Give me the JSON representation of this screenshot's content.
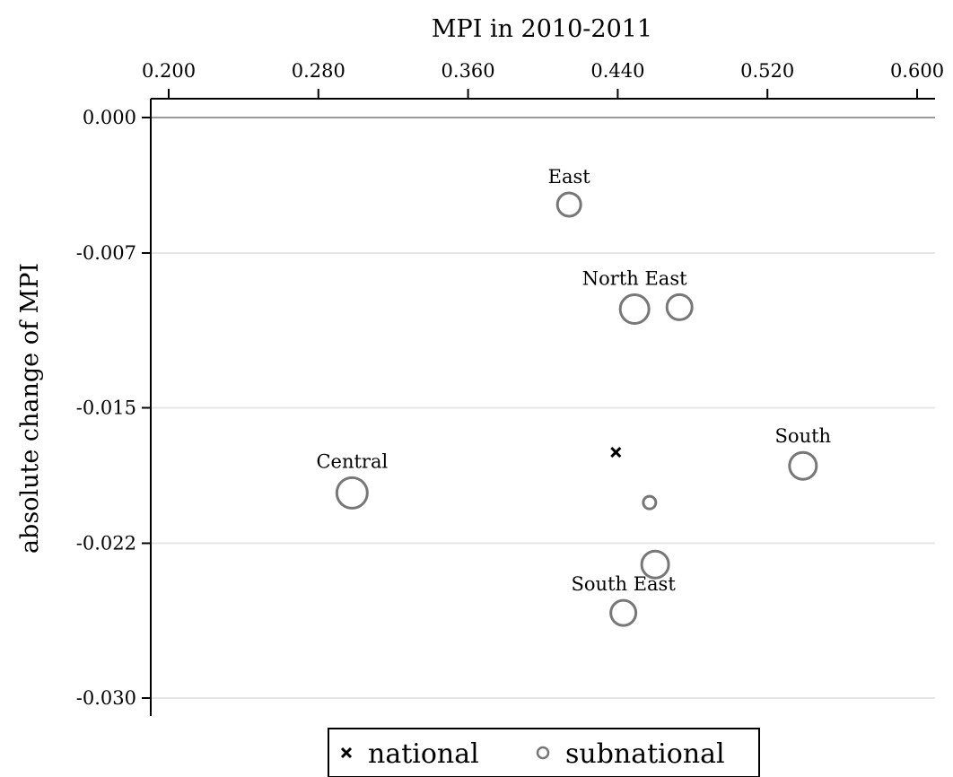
{
  "chart_data": {
    "type": "scatter",
    "xlabel": "MPI in 2010-2011",
    "ylabel": "absolute change of MPI",
    "x_axis_position": "top",
    "xlim": [
      0.2,
      0.6
    ],
    "ylim": [
      -0.03,
      0.0
    ],
    "x_ticks": [
      "0.200",
      "0.280",
      "0.360",
      "0.440",
      "0.520",
      "0.600"
    ],
    "y_ticks": [
      "0.000",
      "-0.007",
      "-0.015",
      "-0.022",
      "-0.030"
    ],
    "grid": "horizontal",
    "reference_line_y": 0.0,
    "legend": {
      "placement": "bottom-center",
      "items": [
        {
          "symbol": "×",
          "label": "national"
        },
        {
          "symbol": "○",
          "label": "subnational"
        }
      ]
    },
    "series": [
      {
        "name": "national",
        "marker": "x",
        "points": [
          {
            "x": 0.439,
            "y": -0.0173
          }
        ]
      },
      {
        "name": "subnational",
        "marker": "circle",
        "points": [
          {
            "x": 0.414,
            "y": -0.0045,
            "label": "East",
            "size": 13
          },
          {
            "x": 0.449,
            "y": -0.0099,
            "label": "North East",
            "size": 16
          },
          {
            "x": 0.473,
            "y": -0.0098,
            "label": "",
            "size": 14
          },
          {
            "x": 0.539,
            "y": -0.018,
            "label": "South",
            "size": 15
          },
          {
            "x": 0.298,
            "y": -0.0194,
            "label": "Central",
            "size": 17
          },
          {
            "x": 0.457,
            "y": -0.0199,
            "label": "",
            "size": 7
          },
          {
            "x": 0.46,
            "y": -0.0231,
            "label": "",
            "size": 15
          },
          {
            "x": 0.443,
            "y": -0.0256,
            "label": "South East",
            "size": 14
          }
        ]
      }
    ]
  }
}
